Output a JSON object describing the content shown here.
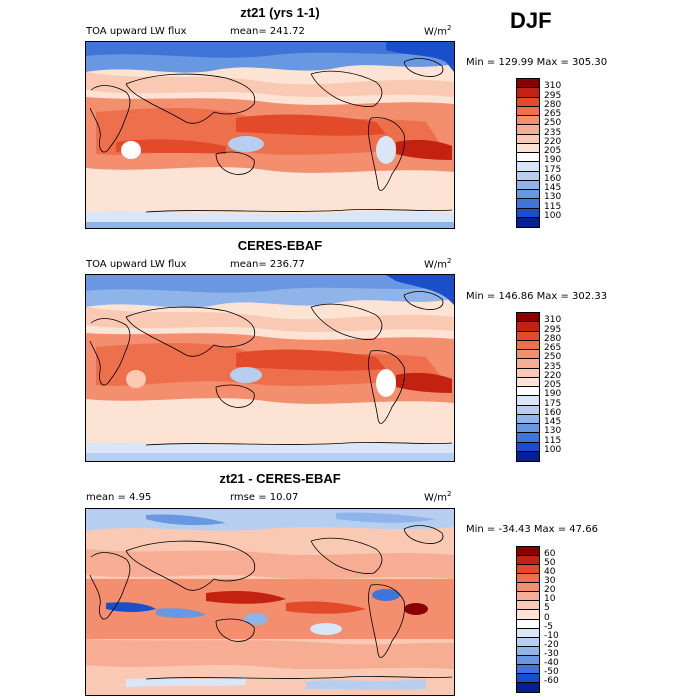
{
  "season": "DJF",
  "panels": [
    {
      "title": "zt21 (yrs 1-1)",
      "left_label": "TOA upward LW flux",
      "mid_label": "mean= 241.72",
      "units": "W/m",
      "units_sup": "2",
      "minmax": "Min = 129.99 Max = 305.30",
      "legend": [
        "310",
        "295",
        "280",
        "265",
        "250",
        "235",
        "220",
        "205",
        "190",
        "175",
        "160",
        "145",
        "130",
        "115",
        "100"
      ],
      "colors": [
        "#8a0000",
        "#c2220f",
        "#e24a2a",
        "#ee6f4c",
        "#f38e6e",
        "#f7ad93",
        "#fac9b3",
        "#fde3d3",
        "#ffffff",
        "#d8e6f7",
        "#b6cff1",
        "#8fb4ea",
        "#6998e2",
        "#3f75d8",
        "#1a4fc9",
        "#05208f"
      ]
    },
    {
      "title": "CERES-EBAF",
      "left_label": "TOA upward LW flux",
      "mid_label": "mean= 236.77",
      "units": "W/m",
      "units_sup": "2",
      "minmax": "Min = 146.86 Max = 302.33",
      "legend": [
        "310",
        "295",
        "280",
        "265",
        "250",
        "235",
        "220",
        "205",
        "190",
        "175",
        "160",
        "145",
        "130",
        "115",
        "100"
      ],
      "colors": [
        "#8a0000",
        "#c2220f",
        "#e24a2a",
        "#ee6f4c",
        "#f38e6e",
        "#f7ad93",
        "#fac9b3",
        "#fde3d3",
        "#ffffff",
        "#d8e6f7",
        "#b6cff1",
        "#8fb4ea",
        "#6998e2",
        "#3f75d8",
        "#1a4fc9",
        "#05208f"
      ]
    },
    {
      "title": "zt21 - CERES-EBAF",
      "left_label": "mean =    4.95",
      "mid_label": "rmse =   10.07",
      "units": "W/m",
      "units_sup": "2",
      "minmax": "Min = -34.43 Max =  47.66",
      "legend": [
        "60",
        "50",
        "40",
        "30",
        "20",
        "10",
        "5",
        "0",
        "-5",
        "-10",
        "-20",
        "-30",
        "-40",
        "-50",
        "-60"
      ],
      "colors": [
        "#8a0000",
        "#c2220f",
        "#e24a2a",
        "#ee6f4c",
        "#f38e6e",
        "#f7ad93",
        "#fac9b3",
        "#fde3d3",
        "#ffffff",
        "#d8e6f7",
        "#b6cff1",
        "#8fb4ea",
        "#6998e2",
        "#3f75d8",
        "#1a4fc9",
        "#05208f"
      ]
    }
  ]
}
